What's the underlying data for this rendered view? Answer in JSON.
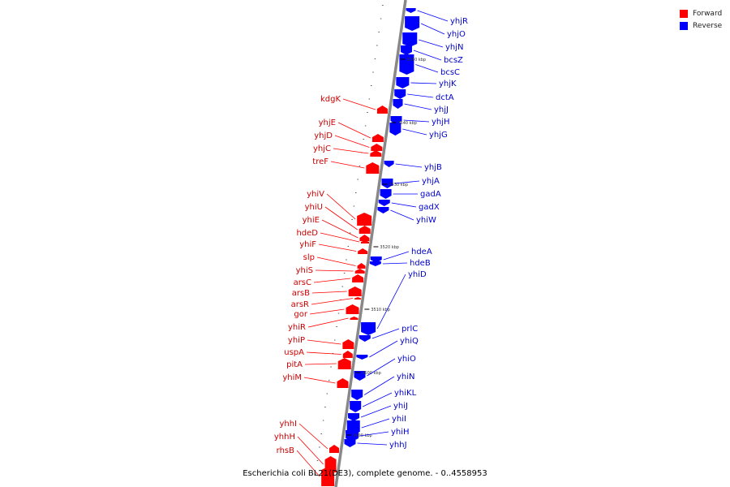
{
  "caption": "Escherichia coli BL21(DE3), complete genome. - 0..4558953",
  "legend": [
    {
      "label": "Forward",
      "color": "#ff0000"
    },
    {
      "label": "Reverse",
      "color": "#0000ff"
    }
  ],
  "colors": {
    "forward": "#ff0000",
    "reverse": "#0000ff",
    "backbone": "#888888"
  },
  "ticks": [
    "3550 kbp",
    "3540 kbp",
    "3530 kbp",
    "3520 kbp",
    "3510 kbp",
    "3500 kbp",
    "3490 kbp"
  ],
  "forward_genes": [
    "kdgK",
    "yhjE",
    "yhjD",
    "yhjC",
    "treF",
    "yhiV",
    "yhiU",
    "yhiE",
    "hdeD",
    "yhiF",
    "slp",
    "yhiS",
    "arsC",
    "arsB",
    "arsR",
    "gor",
    "yhiR",
    "yhiP",
    "uspA",
    "pitA",
    "yhiM",
    "yhhI",
    "yhhH",
    "rhsB"
  ],
  "reverse_genes": [
    "yhjR",
    "yhjO",
    "yhjN",
    "bcsZ",
    "bcsC",
    "yhjK",
    "dctA",
    "yhjJ",
    "yhjH",
    "yhjG",
    "yhjB",
    "yhjA",
    "gadA",
    "gadX",
    "yhiW",
    "hdeA",
    "hdeB",
    "yhiD",
    "prlC",
    "yhiQ",
    "yhiO",
    "yhiN",
    "yhiKL",
    "yhiJ",
    "yhiI",
    "yhiH",
    "yhhJ"
  ]
}
